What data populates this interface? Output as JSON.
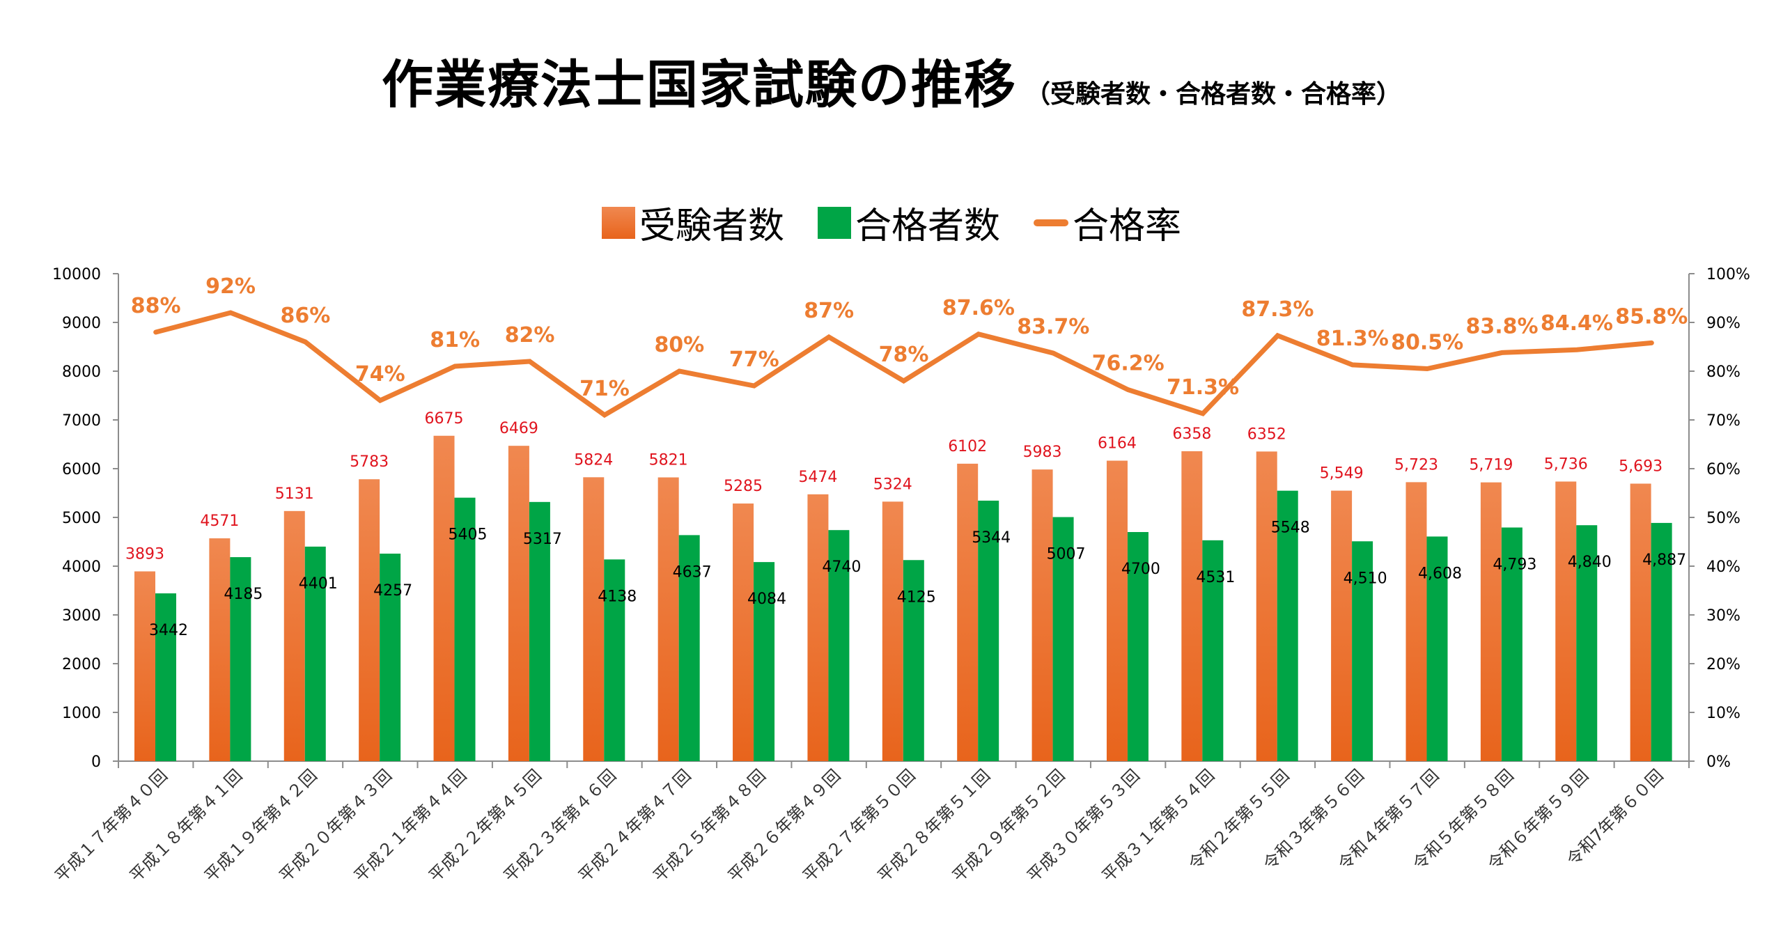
{
  "title": {
    "main": "作業療法士国家試験の推移",
    "sub": "（受験者数・合格者数・合格率）"
  },
  "colors": {
    "applicants_top": "#f08850",
    "applicants_bottom": "#e8641c",
    "passers": "#00a546",
    "rate_line": "#ed7d31",
    "applicants_label": "#e0141e",
    "passers_label": "#000000",
    "axis": "#8c8c8c"
  },
  "legend": [
    {
      "name": "受験者数",
      "kind": "bar",
      "color": "#ed7d31"
    },
    {
      "name": "合格者数",
      "kind": "bar",
      "color": "#00a546"
    },
    {
      "name": "合格率",
      "kind": "line",
      "color": "#ed7d31"
    }
  ],
  "chart_data": {
    "type": "bar",
    "title": "作業療法士国家試験の推移",
    "subtitle": "（受験者数・合格者数・合格率）",
    "xlabel": "",
    "ylabel": "",
    "y2label": "",
    "ylim": [
      0,
      10000
    ],
    "y2lim": [
      0,
      100
    ],
    "yticks": [
      "0",
      "1000",
      "2000",
      "3000",
      "4000",
      "5000",
      "6000",
      "7000",
      "8000",
      "9000",
      "10000"
    ],
    "y2ticks": [
      "0%",
      "10%",
      "20%",
      "30%",
      "40%",
      "50%",
      "60%",
      "70%",
      "80%",
      "90%",
      "100%"
    ],
    "grid": false,
    "legend_position": "top-center",
    "categories": [
      "平成１７年第４０回",
      "平成１８年第４１回",
      "平成１９年第４２回",
      "平成２０年第４３回",
      "平成２１年第４４回",
      "平成２２年第４５回",
      "平成２３年第４６回",
      "平成２４年第４７回",
      "平成２５年第４８回",
      "平成２６年第４９回",
      "平成２７年第５０回",
      "平成２８年第５１回",
      "平成２９年第５２回",
      "平成３０年第５３回",
      "平成３１年第５４回",
      "令和２年第５５回",
      "令和３年第５６回",
      "令和４年第５７回",
      "令和５年第５８回",
      "令和６年第５９回",
      "令和7年第６０回"
    ],
    "series": [
      {
        "name": "受験者数",
        "type": "bar",
        "axis": "left",
        "values": [
          3893,
          4571,
          5131,
          5783,
          6675,
          6469,
          5824,
          5821,
          5285,
          5474,
          5324,
          6102,
          5983,
          6164,
          6358,
          6352,
          5549,
          5723,
          5719,
          5736,
          5693
        ],
        "labels": [
          "3893",
          "4571",
          "5131",
          "5783",
          "6675",
          "6469",
          "5824",
          "5821",
          "5285",
          "5474",
          "5324",
          "6102",
          "5983",
          "6164",
          "6358",
          "6352",
          "5,549",
          "5,723",
          "5,719",
          "5,736",
          "5,693"
        ]
      },
      {
        "name": "合格者数",
        "type": "bar",
        "axis": "left",
        "values": [
          3442,
          4185,
          4401,
          4257,
          5405,
          5317,
          4138,
          4637,
          4084,
          4740,
          4125,
          5344,
          5007,
          4700,
          4531,
          5548,
          4510,
          4608,
          4793,
          4840,
          4887
        ],
        "labels": [
          "3442",
          "4185",
          "4401",
          "4257",
          "5405",
          "5317",
          "4138",
          "4637",
          "4084",
          "4740",
          "4125",
          "5344",
          "5007",
          "4700",
          "4531",
          "5548",
          "4,510",
          "4,608",
          "4,793",
          "4,840",
          "4,887"
        ]
      },
      {
        "name": "合格率",
        "type": "line",
        "axis": "right",
        "values": [
          88,
          92,
          86,
          74,
          81,
          82,
          71,
          80,
          77,
          87,
          78,
          87.6,
          83.7,
          76.2,
          71.3,
          87.3,
          81.3,
          80.5,
          83.8,
          84.4,
          85.8
        ],
        "labels": [
          "88%",
          "92%",
          "86%",
          "74%",
          "81%",
          "82%",
          "71%",
          "80%",
          "77%",
          "87%",
          "78%",
          "87.6%",
          "83.7%",
          "76.2%",
          "71.3%",
          "87.3%",
          "81.3%",
          "80.5%",
          "83.8%",
          "84.4%",
          "85.8%"
        ]
      }
    ]
  }
}
